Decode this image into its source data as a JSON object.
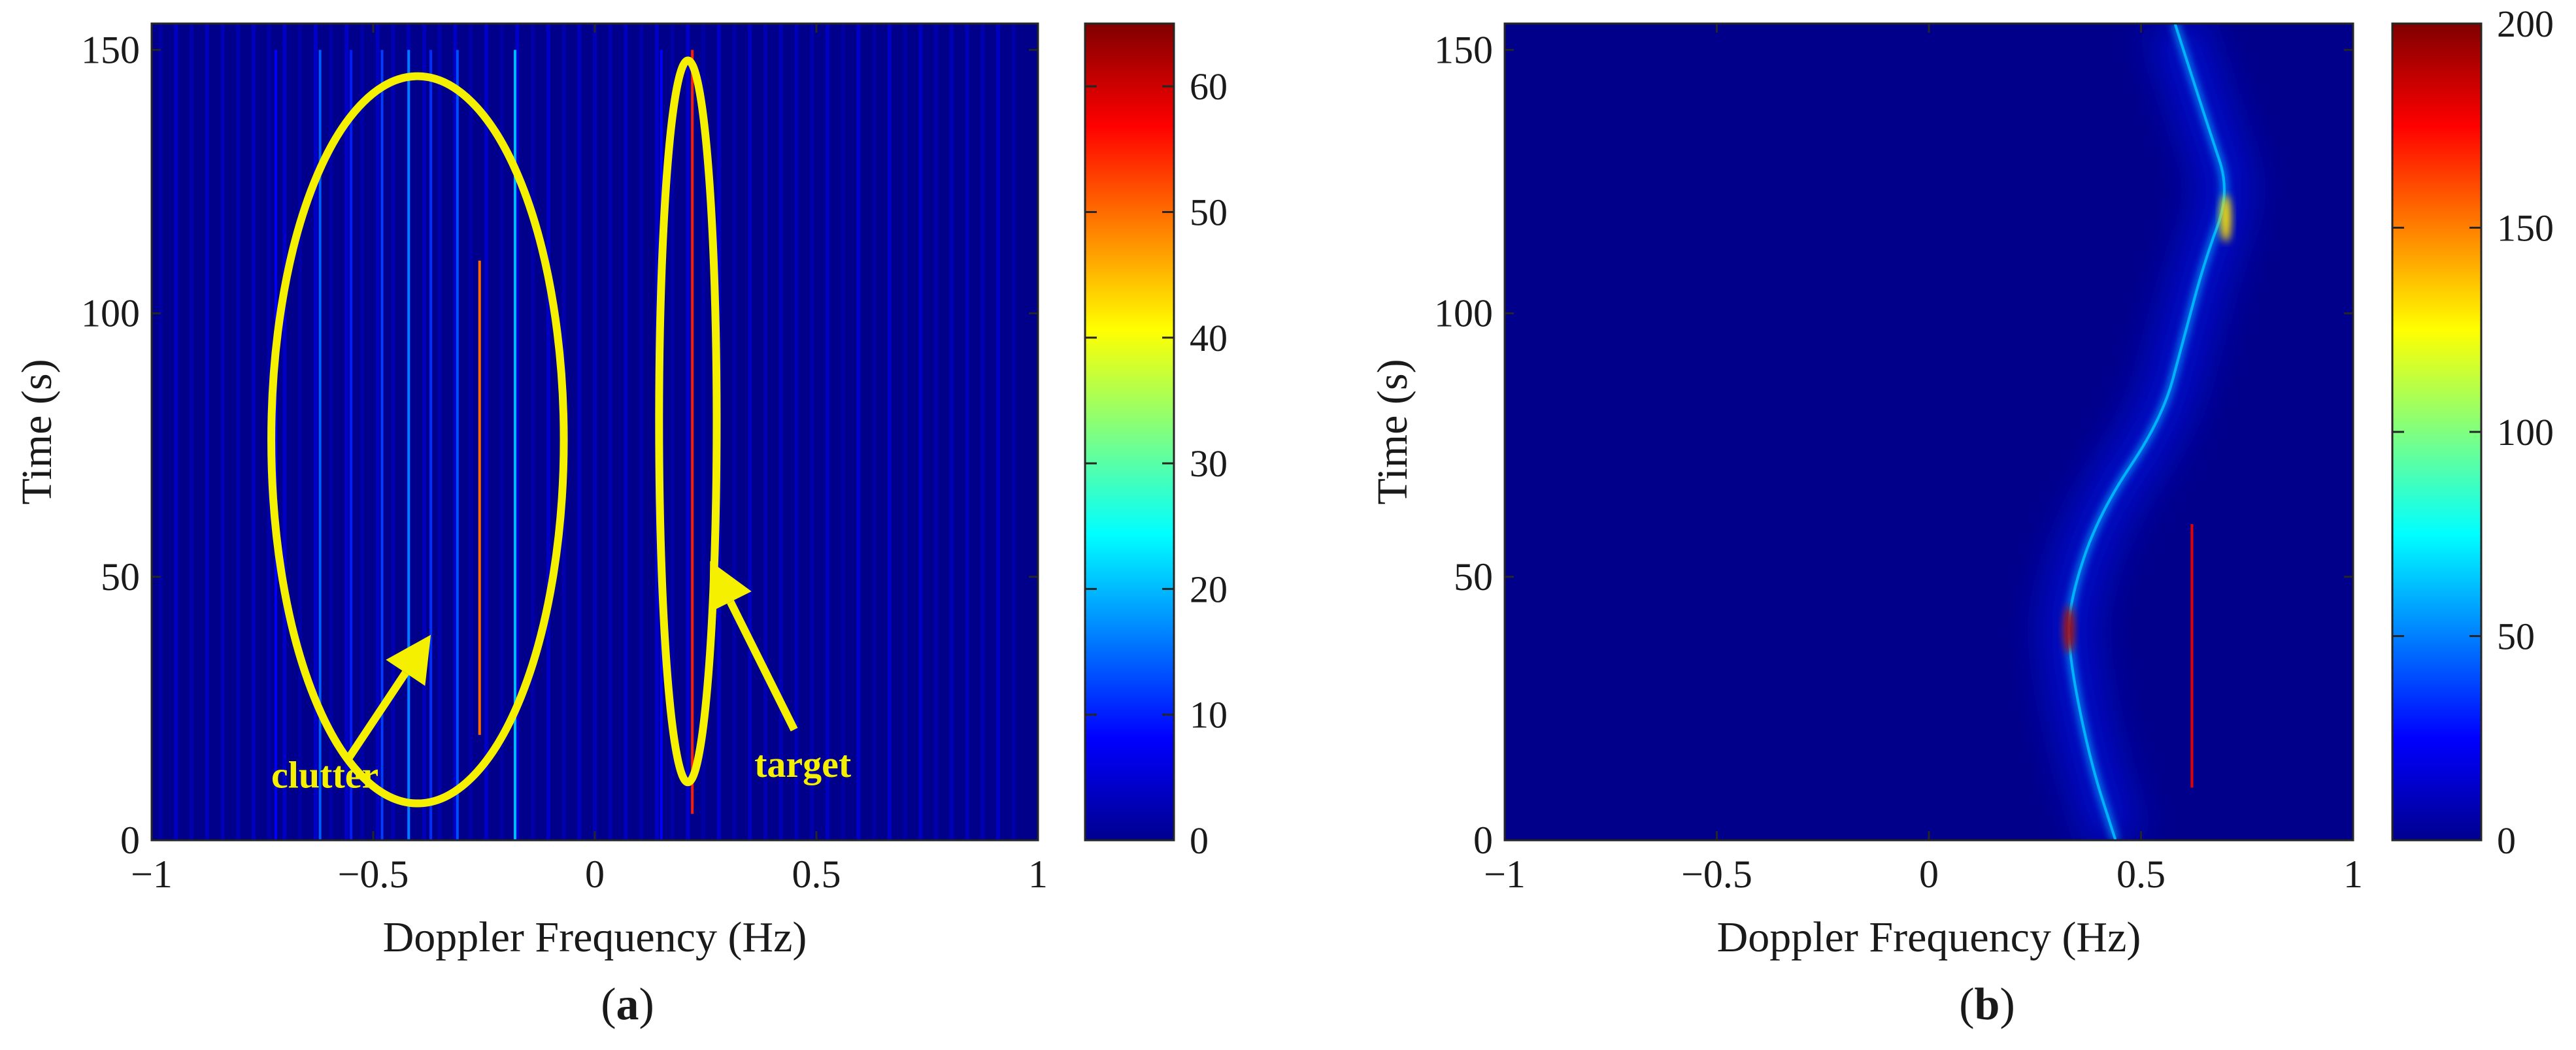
{
  "chart_data": [
    {
      "type": "heatmap",
      "panel_label": "(a)",
      "panel_label_letter": "a",
      "xlabel": "Doppler Frequency (Hz)",
      "ylabel": "Time (s)",
      "xlim": [
        -1,
        1
      ],
      "ylim": [
        0,
        155
      ],
      "xticks": [
        -1,
        -0.5,
        0,
        0.5,
        1
      ],
      "xtick_labels": [
        "−1",
        "−0.5",
        "0",
        "0.5",
        "1"
      ],
      "yticks": [
        0,
        50,
        100,
        150
      ],
      "ytick_labels": [
        "0",
        "50",
        "100",
        "150"
      ],
      "colorbar": {
        "min": 0,
        "max": 65,
        "ticks": [
          0,
          10,
          20,
          30,
          40,
          50,
          60
        ],
        "tick_labels": [
          "0",
          "10",
          "20",
          "30",
          "40",
          "50",
          "60"
        ]
      },
      "background_level": 3,
      "streaks": [
        {
          "freq": -0.62,
          "t0": 0,
          "t1": 150,
          "level": 14
        },
        {
          "freq": -0.55,
          "t0": 0,
          "t1": 150,
          "level": 10
        },
        {
          "freq": -0.48,
          "t0": 0,
          "t1": 150,
          "level": 12
        },
        {
          "freq": -0.42,
          "t0": 0,
          "t1": 150,
          "level": 16
        },
        {
          "freq": -0.37,
          "t0": 0,
          "t1": 150,
          "level": 11
        },
        {
          "freq": -0.31,
          "t0": 0,
          "t1": 150,
          "level": 13
        },
        {
          "freq": -0.26,
          "t0": 20,
          "t1": 110,
          "level": 50
        },
        {
          "freq": -0.18,
          "t0": 0,
          "t1": 150,
          "level": 20
        },
        {
          "freq": -0.72,
          "t0": 0,
          "t1": 150,
          "level": 8
        },
        {
          "freq": 0.15,
          "t0": 0,
          "t1": 150,
          "level": 8
        },
        {
          "freq": 0.22,
          "t0": 5,
          "t1": 150,
          "level": 55
        }
      ],
      "annotations": [
        {
          "text": "clutter",
          "ellipse": {
            "cx": -0.4,
            "cy": 76,
            "rx": 0.33,
            "ry": 69
          },
          "arrow_from": [
            -0.56,
            15
          ],
          "arrow_to": [
            -0.37,
            39
          ],
          "text_at": [
            -0.73,
            10
          ]
        },
        {
          "text": "target",
          "ellipse": {
            "cx": 0.21,
            "cy": 79.5,
            "rx": 0.065,
            "ry": 68.5
          },
          "arrow_from": [
            0.45,
            21
          ],
          "arrow_to": [
            0.26,
            53
          ],
          "text_at": [
            0.36,
            12
          ]
        }
      ]
    },
    {
      "type": "heatmap",
      "panel_label": "(b)",
      "panel_label_letter": "b",
      "xlabel": "Doppler Frequency (Hz)",
      "ylabel": "Time (s)",
      "xlim": [
        -1,
        1
      ],
      "ylim": [
        0,
        155
      ],
      "xticks": [
        -1,
        -0.5,
        0,
        0.5,
        1
      ],
      "xtick_labels": [
        "−1",
        "−0.5",
        "0",
        "0.5",
        "1"
      ],
      "yticks": [
        0,
        50,
        100,
        150
      ],
      "ytick_labels": [
        "0",
        "50",
        "100",
        "150"
      ],
      "colorbar": {
        "min": 0,
        "max": 200,
        "ticks": [
          0,
          50,
          100,
          150,
          200
        ],
        "tick_labels": [
          "0",
          "50",
          "100",
          "150",
          "200"
        ]
      },
      "background_level": 6,
      "curve": {
        "points": [
          [
            0.44,
            0
          ],
          [
            0.38,
            15
          ],
          [
            0.33,
            35
          ],
          [
            0.33,
            45
          ],
          [
            0.4,
            62
          ],
          [
            0.55,
            80
          ],
          [
            0.6,
            95
          ],
          [
            0.65,
            110
          ],
          [
            0.71,
            123
          ],
          [
            0.66,
            135
          ],
          [
            0.58,
            155
          ]
        ],
        "level": 60,
        "hotspots": [
          [
            0.33,
            40,
            190
          ],
          [
            0.7,
            118,
            130
          ]
        ]
      },
      "streaks": [
        {
          "freq": 0.62,
          "t0": 10,
          "t1": 60,
          "level": 180
        }
      ]
    }
  ]
}
